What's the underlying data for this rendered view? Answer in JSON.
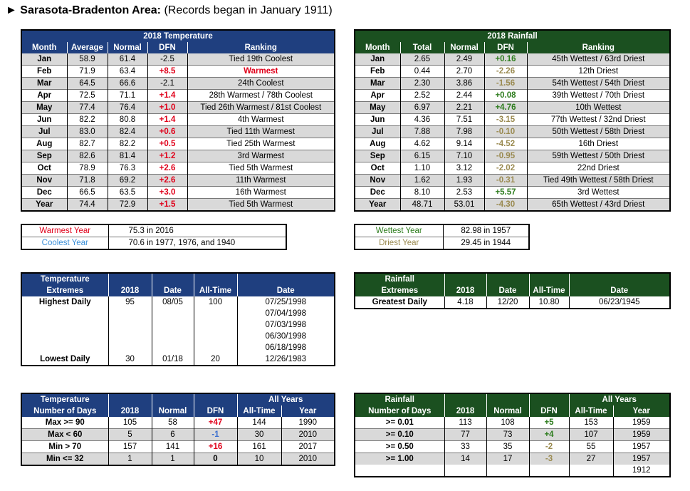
{
  "title": {
    "arrow": "►",
    "bold": "Sarasota-Bradenton Area:",
    "rest": "(Records began in January 1911)"
  },
  "temp": {
    "caption": "2018 Temperature",
    "headers": [
      "Month",
      "Average",
      "Normal",
      "DFN",
      "Ranking"
    ],
    "rows": [
      [
        "Jan",
        "58.9",
        "61.4",
        "-2.5",
        "Tied 19th Coolest"
      ],
      [
        "Feb",
        "71.9",
        "63.4",
        "+8.5",
        "Warmest"
      ],
      [
        "Mar",
        "64.5",
        "66.6",
        "-2.1",
        "24th Coolest"
      ],
      [
        "Apr",
        "72.5",
        "71.1",
        "+1.4",
        "28th Warmest / 78th Coolest"
      ],
      [
        "May",
        "77.4",
        "76.4",
        "+1.0",
        "Tied 26th Warmest / 81st Coolest"
      ],
      [
        "Jun",
        "82.2",
        "80.8",
        "+1.4",
        "4th Warmest"
      ],
      [
        "Jul",
        "83.0",
        "82.4",
        "+0.6",
        "Tied 11th Warmest"
      ],
      [
        "Aug",
        "82.7",
        "82.2",
        "+0.5",
        "Tied 25th Warmest"
      ],
      [
        "Sep",
        "82.6",
        "81.4",
        "+1.2",
        "3rd Warmest"
      ],
      [
        "Oct",
        "78.9",
        "76.3",
        "+2.6",
        "Tied 5th Warmest"
      ],
      [
        "Nov",
        "71.8",
        "69.2",
        "+2.6",
        "11th Warmest"
      ],
      [
        "Dec",
        "66.5",
        "63.5",
        "+3.0",
        "16th Warmest"
      ],
      [
        "Year",
        "74.4",
        "72.9",
        "+1.5",
        "Tied 5th Warmest"
      ]
    ]
  },
  "rain": {
    "caption": "2018 Rainfall",
    "headers": [
      "Month",
      "Total",
      "Normal",
      "DFN",
      "Ranking"
    ],
    "rows": [
      [
        "Jan",
        "2.65",
        "2.49",
        "+0.16",
        "45th Wettest / 63rd Driest"
      ],
      [
        "Feb",
        "0.44",
        "2.70",
        "-2.26",
        "12th Driest"
      ],
      [
        "Mar",
        "2.30",
        "3.86",
        "-1.56",
        "54th Wettest / 54th Driest"
      ],
      [
        "Apr",
        "2.52",
        "2.44",
        "+0.08",
        "39th Wettest / 70th Driest"
      ],
      [
        "May",
        "6.97",
        "2.21",
        "+4.76",
        "10th Wettest"
      ],
      [
        "Jun",
        "4.36",
        "7.51",
        "-3.15",
        "77th Wettest / 32nd Driest"
      ],
      [
        "Jul",
        "7.88",
        "7.98",
        "-0.10",
        "50th Wettest / 58th Driest"
      ],
      [
        "Aug",
        "4.62",
        "9.14",
        "-4.52",
        "16th Driest"
      ],
      [
        "Sep",
        "6.15",
        "7.10",
        "-0.95",
        "59th Wettest / 50th Driest"
      ],
      [
        "Oct",
        "1.10",
        "3.12",
        "-2.02",
        "22nd Driest"
      ],
      [
        "Nov",
        "1.62",
        "1.93",
        "-0.31",
        "Tied 49th Wettest / 58th Driest"
      ],
      [
        "Dec",
        "8.10",
        "2.53",
        "+5.57",
        "3rd Wettest"
      ],
      [
        "Year",
        "48.71",
        "53.01",
        "-4.30",
        "65th Wettest / 43rd Driest"
      ]
    ]
  },
  "temp_year": {
    "warm_label": "Warmest Year",
    "warm_val": "75.3 in 2016",
    "cool_label": "Coolest Year",
    "cool_val": "70.6 in 1977, 1976, and 1940"
  },
  "rain_year": {
    "wet_label": "Wettest Year",
    "wet_val": "82.98 in 1957",
    "dry_label": "Driest Year",
    "dry_val": "29.45 in 1944"
  },
  "temp_ext": {
    "h1": "Temperature",
    "h2": "Extremes",
    "c2018": "2018",
    "cdate": "Date",
    "call": "All-Time",
    "cdate2": "Date",
    "high_label": "Highest Daily",
    "high_2018": "95",
    "high_date": "08/05",
    "high_all": "100",
    "high_dates": [
      "07/25/1998",
      "07/04/1998",
      "07/03/1998",
      "06/30/1998",
      "06/18/1998"
    ],
    "low_label": "Lowest Daily",
    "low_2018": "30",
    "low_date": "01/18",
    "low_all": "20",
    "low_alldate": "12/26/1983"
  },
  "rain_ext": {
    "h1": "Rainfall",
    "h2": "Extremes",
    "c2018": "2018",
    "cdate": "Date",
    "call": "All-Time",
    "cdate2": "Date",
    "label": "Greatest Daily",
    "v2018": "4.18",
    "vdate": "12/20",
    "vall": "10.80",
    "valldate": "06/23/1945"
  },
  "temp_days": {
    "h1": "Temperature",
    "h2": "Number of Days",
    "all_years": "All Years",
    "cols": [
      "2018",
      "Normal",
      "DFN",
      "All-Time",
      "Year"
    ],
    "rows": [
      [
        "Max >= 90",
        "105",
        "58",
        "+47",
        "144",
        "1990"
      ],
      [
        "Max < 60",
        "5",
        "6",
        "-1",
        "30",
        "2010"
      ],
      [
        "Min > 70",
        "157",
        "141",
        "+16",
        "161",
        "2017"
      ],
      [
        "Min <= 32",
        "1",
        "1",
        "0",
        "10",
        "2010"
      ]
    ]
  },
  "rain_days": {
    "h1": "Rainfall",
    "h2": "Number of Days",
    "all_years": "All Years",
    "cols": [
      "2018",
      "Normal",
      "DFN",
      "All-Time",
      "Year"
    ],
    "rows": [
      [
        ">= 0.01",
        "113",
        "108",
        "+5",
        "153",
        "1959"
      ],
      [
        ">= 0.10",
        "77",
        "73",
        "+4",
        "107",
        "1959"
      ],
      [
        ">= 0.50",
        "33",
        "35",
        "-2",
        "55",
        "1957"
      ],
      [
        ">= 1.00",
        "14",
        "17",
        "-3",
        "27",
        "1957"
      ]
    ],
    "extra_year": "1912"
  }
}
